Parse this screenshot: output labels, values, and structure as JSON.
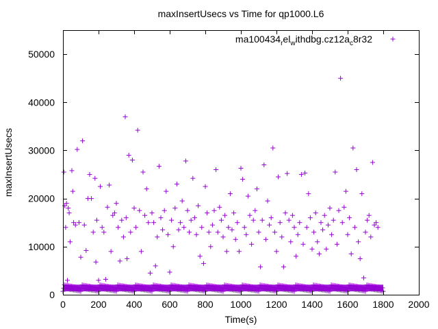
{
  "chart_data": {
    "type": "scatter",
    "title": "maxInsertUsecs vs Time for qp1000.L6",
    "xlabel": "Time(s)",
    "ylabel": "maxInsertUsecs",
    "xlim": [
      0,
      2000
    ],
    "ylim": [
      0,
      55000
    ],
    "xticks": [
      0,
      200,
      400,
      600,
      800,
      1000,
      1200,
      1400,
      1600,
      1800,
      2000
    ],
    "yticks": [
      0,
      10000,
      20000,
      30000,
      40000,
      50000
    ],
    "xtick_labels": [
      "0",
      "200",
      "400",
      "600",
      "800",
      "1000",
      "1200",
      "1400",
      "1600",
      "1800",
      "2000"
    ],
    "ytick_labels": [
      "0",
      "10000",
      "20000",
      "30000",
      "40000",
      "50000"
    ],
    "grid": false,
    "legend_position": "top-right",
    "marker": "+",
    "series": [
      {
        "name": "ma100434_rel_withdbg.cz12a_c8r32",
        "name_base": "ma100434",
        "name_sub1": "r",
        "name_mid": "el",
        "name_sub2": "w",
        "name_mid2": "ithdbg.cz12a",
        "name_sub3": "c",
        "name_end": "8r32",
        "color": "#9400d3",
        "points": [
          [
            5,
            25500
          ],
          [
            10,
            18500
          ],
          [
            15,
            14000
          ],
          [
            20,
            19000
          ],
          [
            25,
            3000
          ],
          [
            30,
            18000
          ],
          [
            35,
            17000
          ],
          [
            40,
            11000
          ],
          [
            50,
            25800
          ],
          [
            55,
            21500
          ],
          [
            60,
            15000
          ],
          [
            70,
            14500
          ],
          [
            80,
            30200
          ],
          [
            90,
            15000
          ],
          [
            100,
            7800
          ],
          [
            110,
            32000
          ],
          [
            120,
            14500
          ],
          [
            130,
            9200
          ],
          [
            140,
            20000
          ],
          [
            150,
            25000
          ],
          [
            160,
            20000
          ],
          [
            170,
            13000
          ],
          [
            180,
            24200
          ],
          [
            185,
            6800
          ],
          [
            190,
            15500
          ],
          [
            200,
            3000
          ],
          [
            210,
            22500
          ],
          [
            220,
            14000
          ],
          [
            230,
            13000
          ],
          [
            240,
            3200
          ],
          [
            250,
            18200
          ],
          [
            260,
            22800
          ],
          [
            270,
            9000
          ],
          [
            280,
            16500
          ],
          [
            290,
            17000
          ],
          [
            300,
            19000
          ],
          [
            310,
            14000
          ],
          [
            320,
            7000
          ],
          [
            330,
            15500
          ],
          [
            340,
            12000
          ],
          [
            350,
            37000
          ],
          [
            355,
            16000
          ],
          [
            360,
            7500
          ],
          [
            370,
            29000
          ],
          [
            380,
            13000
          ],
          [
            390,
            28000
          ],
          [
            400,
            18000
          ],
          [
            410,
            14000
          ],
          [
            420,
            34200
          ],
          [
            430,
            17500
          ],
          [
            440,
            9000
          ],
          [
            450,
            25500
          ],
          [
            460,
            16500
          ],
          [
            470,
            22000
          ],
          [
            480,
            15000
          ],
          [
            490,
            4500
          ],
          [
            500,
            17000
          ],
          [
            510,
            15000
          ],
          [
            520,
            6000
          ],
          [
            530,
            12000
          ],
          [
            540,
            26700
          ],
          [
            550,
            16000
          ],
          [
            560,
            13500
          ],
          [
            570,
            17500
          ],
          [
            580,
            21500
          ],
          [
            590,
            12500
          ],
          [
            600,
            4700
          ],
          [
            610,
            15500
          ],
          [
            620,
            10000
          ],
          [
            630,
            18000
          ],
          [
            640,
            23000
          ],
          [
            650,
            13500
          ],
          [
            660,
            15000
          ],
          [
            670,
            19500
          ],
          [
            680,
            14000
          ],
          [
            690,
            27800
          ],
          [
            700,
            17500
          ],
          [
            710,
            13000
          ],
          [
            720,
            15500
          ],
          [
            730,
            24200
          ],
          [
            740,
            16000
          ],
          [
            750,
            12500
          ],
          [
            760,
            18500
          ],
          [
            770,
            8000
          ],
          [
            780,
            14000
          ],
          [
            790,
            6500
          ],
          [
            800,
            22500
          ],
          [
            810,
            17000
          ],
          [
            820,
            13000
          ],
          [
            830,
            10000
          ],
          [
            840,
            14500
          ],
          [
            850,
            17500
          ],
          [
            860,
            26000
          ],
          [
            870,
            13000
          ],
          [
            880,
            18200
          ],
          [
            890,
            15500
          ],
          [
            900,
            12000
          ],
          [
            910,
            16500
          ],
          [
            920,
            9000
          ],
          [
            930,
            14000
          ],
          [
            940,
            21000
          ],
          [
            950,
            13500
          ],
          [
            960,
            17000
          ],
          [
            970,
            11500
          ],
          [
            980,
            15000
          ],
          [
            990,
            9000
          ],
          [
            1000,
            26300
          ],
          [
            1010,
            24000
          ],
          [
            1020,
            14000
          ],
          [
            1030,
            12500
          ],
          [
            1040,
            20500
          ],
          [
            1050,
            16500
          ],
          [
            1060,
            10500
          ],
          [
            1070,
            15500
          ],
          [
            1080,
            17500
          ],
          [
            1090,
            22000
          ],
          [
            1100,
            13000
          ],
          [
            1110,
            5800
          ],
          [
            1120,
            15500
          ],
          [
            1130,
            27000
          ],
          [
            1140,
            11500
          ],
          [
            1150,
            19500
          ],
          [
            1160,
            14500
          ],
          [
            1170,
            16000
          ],
          [
            1180,
            30500
          ],
          [
            1190,
            13000
          ],
          [
            1200,
            9000
          ],
          [
            1210,
            24500
          ],
          [
            1220,
            15000
          ],
          [
            1230,
            12000
          ],
          [
            1240,
            5800
          ],
          [
            1250,
            17000
          ],
          [
            1260,
            25200
          ],
          [
            1270,
            15500
          ],
          [
            1280,
            11000
          ],
          [
            1290,
            16500
          ],
          [
            1300,
            14000
          ],
          [
            1310,
            8000
          ],
          [
            1320,
            12500
          ],
          [
            1330,
            15000
          ],
          [
            1340,
            25000
          ],
          [
            1350,
            10500
          ],
          [
            1360,
            25300
          ],
          [
            1370,
            14000
          ],
          [
            1380,
            21000
          ],
          [
            1390,
            16000
          ],
          [
            1400,
            9500
          ],
          [
            1410,
            13000
          ],
          [
            1420,
            17000
          ],
          [
            1430,
            11000
          ],
          [
            1440,
            8500
          ],
          [
            1450,
            15000
          ],
          [
            1460,
            13500
          ],
          [
            1470,
            16500
          ],
          [
            1480,
            9500
          ],
          [
            1490,
            14500
          ],
          [
            1500,
            18000
          ],
          [
            1510,
            12500
          ],
          [
            1520,
            15500
          ],
          [
            1530,
            25500
          ],
          [
            1540,
            10500
          ],
          [
            1550,
            17500
          ],
          [
            1560,
            45000
          ],
          [
            1570,
            15000
          ],
          [
            1580,
            18200
          ],
          [
            1590,
            21500
          ],
          [
            1600,
            12500
          ],
          [
            1610,
            16000
          ],
          [
            1620,
            8500
          ],
          [
            1630,
            30500
          ],
          [
            1640,
            14000
          ],
          [
            1650,
            26000
          ],
          [
            1660,
            11000
          ],
          [
            1670,
            7500
          ],
          [
            1680,
            21000
          ],
          [
            1690,
            3500
          ],
          [
            1700,
            13000
          ],
          [
            1710,
            15500
          ],
          [
            1720,
            16500
          ],
          [
            1730,
            12000
          ],
          [
            1740,
            27500
          ],
          [
            1750,
            14500
          ],
          [
            1760,
            15000
          ],
          [
            1770,
            14000
          ]
        ],
        "dense_band": {
          "x_range": [
            0,
            1800
          ],
          "y_min": 700,
          "y_max": 2100
        }
      }
    ]
  }
}
